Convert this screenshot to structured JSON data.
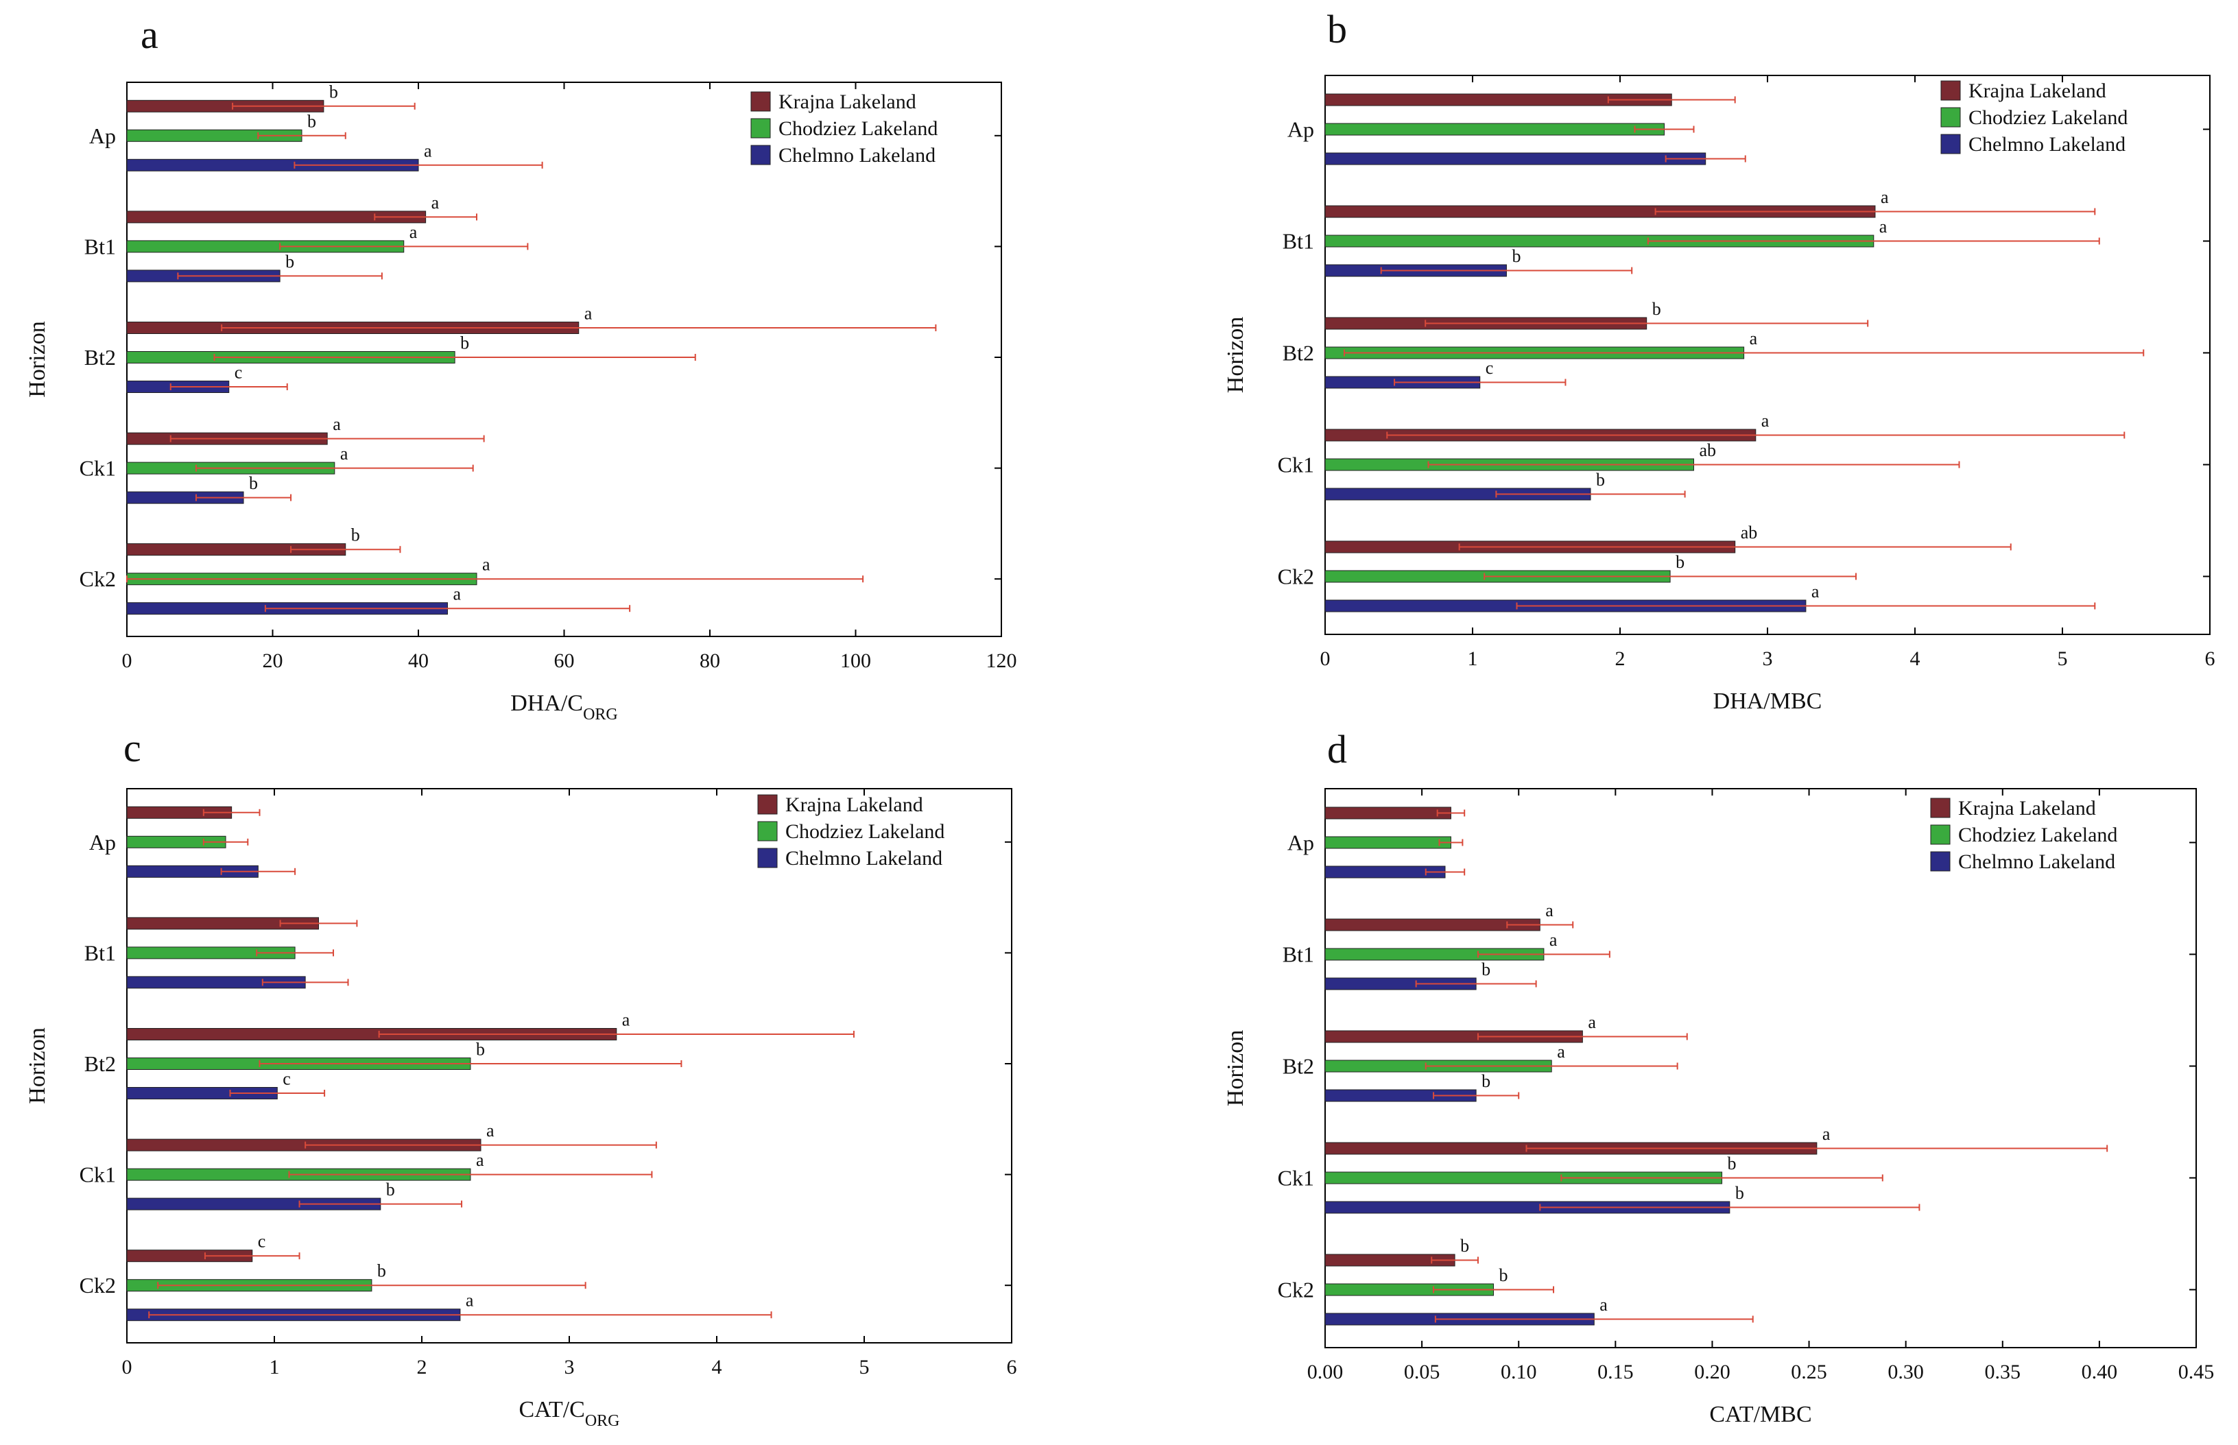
{
  "colors": {
    "Krajna Lakeland": "#7a2a31",
    "Chodziez Lakeland": "#3aaa3e",
    "Chelmno Lakeland": "#2c2c86",
    "error_bar": "#d94a3a"
  },
  "legend": [
    "Krajna Lakeland",
    "Chodziez Lakeland",
    "Chelmno Lakeland"
  ],
  "chart_data": [
    {
      "panel": "a",
      "type": "bar",
      "orientation": "horizontal",
      "title": "",
      "xlabel_main": "DHA/C",
      "xlabel_sub": "ORG",
      "ylabel": "Horizon",
      "categories": [
        "Ap",
        "Bt1",
        "Bt2",
        "Ck1",
        "Ck2"
      ],
      "xlim": [
        0,
        120
      ],
      "xticks": [
        "0",
        "20",
        "40",
        "60",
        "80",
        "100",
        "120"
      ],
      "series": [
        {
          "name": "Krajna Lakeland",
          "values": [
            27,
            41,
            62,
            27.5,
            30
          ],
          "errors": [
            12.5,
            7,
            49,
            21.5,
            7.5
          ],
          "letters": [
            "b",
            "a",
            "a",
            "a",
            "b"
          ]
        },
        {
          "name": "Chodziez Lakeland",
          "values": [
            24,
            38,
            45,
            28.5,
            48
          ],
          "errors": [
            6,
            17,
            33,
            19,
            53
          ],
          "letters": [
            "b",
            "a",
            "b",
            "a",
            "a"
          ]
        },
        {
          "name": "Chelmno Lakeland",
          "values": [
            40,
            21,
            14,
            16,
            44
          ],
          "errors": [
            17,
            14,
            8,
            6.5,
            25
          ],
          "letters": [
            "a",
            "b",
            "c",
            "b",
            "a"
          ]
        }
      ]
    },
    {
      "panel": "b",
      "type": "bar",
      "orientation": "horizontal",
      "title": "",
      "xlabel_main": "DHA/MBC",
      "xlabel_sub": "",
      "ylabel": "Horizon",
      "categories": [
        "Ap",
        "Bt1",
        "Bt2",
        "Ck1",
        "Ck2"
      ],
      "xlim": [
        0,
        6
      ],
      "xticks": [
        "0",
        "1",
        "2",
        "3",
        "4",
        "5",
        "6"
      ],
      "series": [
        {
          "name": "Krajna Lakeland",
          "values": [
            2.35,
            3.73,
            2.18,
            2.92,
            2.78
          ],
          "errors": [
            0.43,
            1.49,
            1.5,
            2.5,
            1.87
          ],
          "letters": [
            "",
            "a",
            "b",
            "a",
            "ab"
          ]
        },
        {
          "name": "Chodziez Lakeland",
          "values": [
            2.3,
            3.72,
            2.84,
            2.5,
            2.34
          ],
          "errors": [
            0.2,
            1.53,
            2.71,
            1.8,
            1.26
          ],
          "letters": [
            "",
            "a",
            "a",
            "ab",
            "b"
          ]
        },
        {
          "name": "Chelmno Lakeland",
          "values": [
            2.58,
            1.23,
            1.05,
            1.8,
            3.26
          ],
          "errors": [
            0.27,
            0.85,
            0.58,
            0.64,
            1.96
          ],
          "letters": [
            "",
            "b",
            "c",
            "b",
            "a"
          ]
        }
      ]
    },
    {
      "panel": "c",
      "type": "bar",
      "orientation": "horizontal",
      "title": "",
      "xlabel_main": "CAT/C",
      "xlabel_sub": "ORG",
      "ylabel": "Horizon",
      "categories": [
        "Ap",
        "Bt1",
        "Bt2",
        "Ck1",
        "Ck2"
      ],
      "xlim": [
        0,
        6
      ],
      "xticks": [
        "0",
        "1",
        "2",
        "3",
        "4",
        "5",
        "6"
      ],
      "series": [
        {
          "name": "Krajna Lakeland",
          "values": [
            0.71,
            1.3,
            3.32,
            2.4,
            0.85
          ],
          "errors": [
            0.19,
            0.26,
            1.61,
            1.19,
            0.32
          ],
          "letters": [
            "",
            "",
            "a",
            "a",
            "c"
          ]
        },
        {
          "name": "Chodziez Lakeland",
          "values": [
            0.67,
            1.14,
            2.33,
            2.33,
            1.66
          ],
          "errors": [
            0.15,
            0.26,
            1.43,
            1.23,
            1.45
          ],
          "letters": [
            "",
            "",
            "b",
            "a",
            "b"
          ]
        },
        {
          "name": "Chelmno Lakeland",
          "values": [
            0.89,
            1.21,
            1.02,
            1.72,
            2.26
          ],
          "errors": [
            0.25,
            0.29,
            0.32,
            0.55,
            2.11
          ],
          "letters": [
            "",
            "",
            "c",
            "b",
            "a"
          ]
        }
      ]
    },
    {
      "panel": "d",
      "type": "bar",
      "orientation": "horizontal",
      "title": "",
      "xlabel_main": "CAT/MBC",
      "xlabel_sub": "",
      "ylabel": "Horizon",
      "categories": [
        "Ap",
        "Bt1",
        "Bt2",
        "Ck1",
        "Ck2"
      ],
      "xlim": [
        0,
        0.45
      ],
      "xticks": [
        "0.00",
        "0.05",
        "0.10",
        "0.15",
        "0.20",
        "0.25",
        "0.30",
        "0.35",
        "0.40",
        "0.45"
      ],
      "series": [
        {
          "name": "Krajna Lakeland",
          "values": [
            0.065,
            0.111,
            0.133,
            0.254,
            0.067
          ],
          "errors": [
            0.007,
            0.017,
            0.054,
            0.15,
            0.012
          ],
          "letters": [
            "",
            "a",
            "a",
            "a",
            "b"
          ]
        },
        {
          "name": "Chodziez Lakeland",
          "values": [
            0.065,
            0.113,
            0.117,
            0.205,
            0.087
          ],
          "errors": [
            0.006,
            0.034,
            0.065,
            0.083,
            0.031
          ],
          "letters": [
            "",
            "a",
            "a",
            "b",
            "b"
          ]
        },
        {
          "name": "Chelmno Lakeland",
          "values": [
            0.062,
            0.078,
            0.078,
            0.209,
            0.139
          ],
          "errors": [
            0.01,
            0.031,
            0.022,
            0.098,
            0.082
          ],
          "letters": [
            "",
            "b",
            "b",
            "b",
            "a"
          ]
        }
      ]
    }
  ]
}
